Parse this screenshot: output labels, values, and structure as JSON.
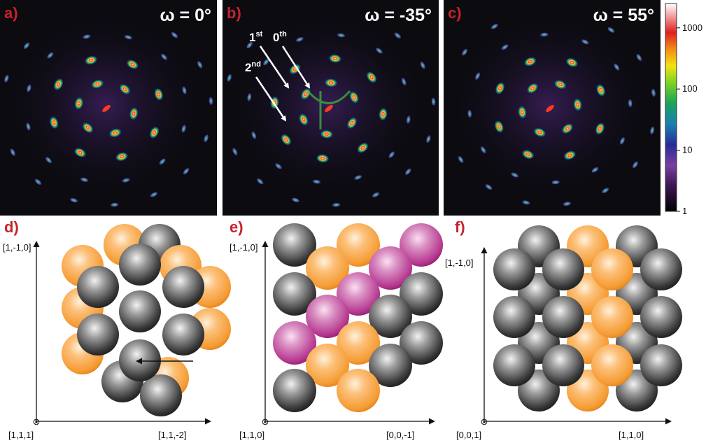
{
  "colors": {
    "label_red": "#c8232c",
    "panel_background": "#0b0b10",
    "orange_atom": "#f59b32",
    "gray_atom": "#5a5a5a",
    "magenta_atom": "#b5368f"
  },
  "top_panels": [
    {
      "id": "a",
      "label": "a)",
      "omega": "ω = 0°"
    },
    {
      "id": "b",
      "label": "b)",
      "omega": "ω = -35°",
      "annotations": {
        "first": "1",
        "first_sup": "st",
        "zeroth": "0",
        "zeroth_sup": "th",
        "second": "2",
        "second_sup": "nd"
      }
    },
    {
      "id": "c",
      "label": "c)",
      "omega": "ω = 55°"
    }
  ],
  "colorbar": {
    "scale": "log",
    "range": [
      1,
      2500
    ],
    "ticks": [
      "1000",
      "100",
      "10",
      "1"
    ]
  },
  "bottom_panels": [
    {
      "id": "d",
      "label": "d)",
      "y_axis": "[1,-1,0]",
      "x_axis": "[1,1,-2]",
      "origin": "[1,1,1]",
      "arrow": "shift-arrow"
    },
    {
      "id": "e",
      "label": "e)",
      "y_axis": "[1,-1,0]",
      "x_axis": "[0,0,-1]",
      "origin": "[1,1,0]"
    },
    {
      "id": "f",
      "label": "f)",
      "y_axis": "[1,-1,0]",
      "x_axis": "[1,1,0]",
      "origin": "[0,0,1]"
    }
  ],
  "origin_symbol": "⊗"
}
